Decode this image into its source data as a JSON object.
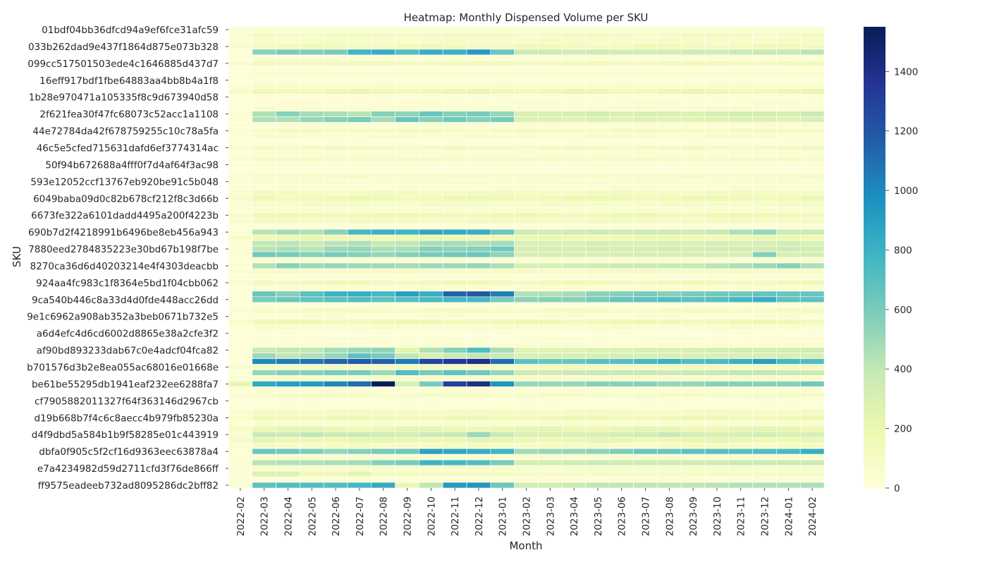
{
  "chart_data": {
    "type": "heatmap",
    "title": "Heatmap: Monthly Dispensed Volume per SKU",
    "xlabel": "Month",
    "ylabel": "SKU",
    "colormap": "YlGnBu",
    "colorbar": {
      "min": 0,
      "max": 1550,
      "ticks": [
        0,
        200,
        400,
        600,
        800,
        1000,
        1200,
        1400
      ]
    },
    "x_categories": [
      "2022-02",
      "2022-03",
      "2022-04",
      "2022-05",
      "2022-06",
      "2022-07",
      "2022-08",
      "2022-09",
      "2022-10",
      "2022-11",
      "2022-12",
      "2023-01",
      "2023-02",
      "2023-03",
      "2023-04",
      "2023-05",
      "2023-06",
      "2023-07",
      "2023-08",
      "2023-09",
      "2023-10",
      "2023-11",
      "2023-12",
      "2024-01",
      "2024-02"
    ],
    "row_count": 82,
    "y_tick_labels": [
      {
        "row": 0,
        "label": "01bdf04bb36dfcd94a9ef6fce31afc59"
      },
      {
        "row": 3,
        "label": "033b262dad9e437f1864d875e073b328"
      },
      {
        "row": 6,
        "label": "099cc517501503ede4c1646885d437d7"
      },
      {
        "row": 9,
        "label": "16eff917bdf1fbe64883aa4bb8b4a1f8"
      },
      {
        "row": 12,
        "label": "1b28e970471a105335f8c9d673940d58"
      },
      {
        "row": 15,
        "label": "2f621fea30f47fc68073c52acc1a1108"
      },
      {
        "row": 18,
        "label": "44e72784da42f678759255c10c78a5fa"
      },
      {
        "row": 21,
        "label": "46c5e5cfed715631dafd6ef3774314ac"
      },
      {
        "row": 24,
        "label": "50f94b672688a4fff0f7d4af64f3ac98"
      },
      {
        "row": 27,
        "label": "593e12052ccf13767eb920be91c5b048"
      },
      {
        "row": 30,
        "label": "6049baba09d0c82b678cf212f8c3d66b"
      },
      {
        "row": 33,
        "label": "6673fe322a6101dadd4495a200f4223b"
      },
      {
        "row": 36,
        "label": "690b7d2f4218991b6496be8eb456a943"
      },
      {
        "row": 39,
        "label": "7880eed2784835223e30bd67b198f7be"
      },
      {
        "row": 42,
        "label": "8270ca36d6d40203214e4f4303deacbb"
      },
      {
        "row": 45,
        "label": "924aa4fc983c1f8364e5bd1f04cbb062"
      },
      {
        "row": 48,
        "label": "9ca540b446c8a33d4d0fde448acc26dd"
      },
      {
        "row": 51,
        "label": "9e1c6962a908ab352a3beb0671b732e5"
      },
      {
        "row": 54,
        "label": "a6d4efc4d6cd6002d8865e38a2cfe3f2"
      },
      {
        "row": 57,
        "label": "af90bd893233dab67c0e4adcf04fca82"
      },
      {
        "row": 60,
        "label": "b701576d3b2e8ea055ac68016e01668e"
      },
      {
        "row": 63,
        "label": "be61be55295db1941eaf232ee6288fa7"
      },
      {
        "row": 66,
        "label": "cf7905882011327f64f363146d2967cb"
      },
      {
        "row": 69,
        "label": "d19b668b7f4c6c8aecc4b979fb85230a"
      },
      {
        "row": 72,
        "label": "d4f9dbd5a584b1b9f58285e01c443919"
      },
      {
        "row": 75,
        "label": "dbfa0f905c5f2cf16d9363eec63878a4"
      },
      {
        "row": 78,
        "label": "e7a4234982d59d2711cfd3f76de866ff"
      },
      {
        "row": 81,
        "label": "ff9575eadeeb732ad8095286dc2bff82"
      }
    ],
    "row_profiles": [
      {
        "rows": [
          0
        ],
        "base": 60
      },
      {
        "rows": [
          1
        ],
        "base": 110
      },
      {
        "rows": [
          2
        ],
        "base": 90
      },
      {
        "rows": [
          3
        ],
        "base": 140
      },
      {
        "rows": [
          4
        ],
        "values": [
          30,
          550,
          600,
          580,
          600,
          780,
          820,
          720,
          820,
          800,
          920,
          650,
          360,
          360,
          330,
          350,
          340,
          340,
          330,
          350,
          340,
          360,
          370,
          380,
          420
        ]
      },
      {
        "rows": [
          5
        ],
        "base": 30
      },
      {
        "rows": [
          6
        ],
        "base": 130
      },
      {
        "rows": [
          7
        ],
        "base": 20
      },
      {
        "rows": [
          8
        ],
        "base": 55
      },
      {
        "rows": [
          9
        ],
        "base": 25
      },
      {
        "rows": [
          10
        ],
        "base": 70
      },
      {
        "rows": [
          11
        ],
        "base": 180
      },
      {
        "rows": [
          12
        ],
        "base": 20
      },
      {
        "rows": [
          13
        ],
        "base": 40
      },
      {
        "rows": [
          14
        ],
        "base": 60
      },
      {
        "rows": [
          15
        ],
        "values": [
          40,
          450,
          560,
          480,
          460,
          420,
          560,
          530,
          650,
          560,
          600,
          520,
          310,
          300,
          320,
          340,
          300,
          300,
          300,
          290,
          320,
          320,
          320,
          320,
          360
        ]
      },
      {
        "rows": [
          16
        ],
        "values": [
          40,
          450,
          450,
          520,
          560,
          600,
          480,
          650,
          560,
          620,
          560,
          600,
          280,
          280,
          260,
          280,
          260,
          270,
          260,
          260,
          260,
          280,
          280,
          260,
          300
        ]
      },
      {
        "rows": [
          17
        ],
        "base": 45
      },
      {
        "rows": [
          18
        ],
        "base": 100
      },
      {
        "rows": [
          19
        ],
        "base": 60
      },
      {
        "rows": [
          20
        ],
        "base": 15
      },
      {
        "rows": [
          21
        ],
        "base": 110
      },
      {
        "rows": [
          22
        ],
        "base": 50
      },
      {
        "rows": [
          23
        ],
        "base": 90
      },
      {
        "rows": [
          24
        ],
        "base": 30
      },
      {
        "rows": [
          25
        ],
        "base": 20
      },
      {
        "rows": [
          26
        ],
        "base": 85
      },
      {
        "rows": [
          27
        ],
        "base": 60
      },
      {
        "rows": [
          28
        ],
        "base": 40
      },
      {
        "rows": [
          29
        ],
        "base": 120
      },
      {
        "rows": [
          30
        ],
        "base": 170
      },
      {
        "rows": [
          31
        ],
        "base": 95
      },
      {
        "rows": [
          32
        ],
        "base": 55
      },
      {
        "rows": [
          33
        ],
        "base": 160
      },
      {
        "rows": [
          34
        ],
        "base": 120
      },
      {
        "rows": [
          35
        ],
        "base": 25
      },
      {
        "rows": [
          36
        ],
        "values": [
          30,
          420,
          480,
          450,
          560,
          760,
          800,
          780,
          860,
          840,
          820,
          640,
          360,
          340,
          350,
          360,
          350,
          360,
          360,
          350,
          380,
          460,
          520,
          360,
          360
        ]
      },
      {
        "rows": [
          37
        ],
        "base": 180
      },
      {
        "rows": [
          38
        ],
        "values": [
          40,
          400,
          420,
          380,
          420,
          450,
          380,
          400,
          460,
          480,
          440,
          480,
          300,
          300,
          300,
          320,
          300,
          300,
          310,
          300,
          320,
          300,
          320,
          340,
          300
        ]
      },
      {
        "rows": [
          39
        ],
        "values": [
          40,
          420,
          460,
          420,
          500,
          520,
          460,
          470,
          560,
          540,
          560,
          620,
          320,
          320,
          320,
          330,
          320,
          320,
          330,
          320,
          330,
          330,
          330,
          360,
          340
        ]
      },
      {
        "rows": [
          40
        ],
        "values": [
          40,
          620,
          600,
          560,
          600,
          560,
          520,
          560,
          600,
          620,
          640,
          540,
          300,
          300,
          300,
          300,
          300,
          300,
          300,
          300,
          300,
          300,
          560,
          300,
          320
        ]
      },
      {
        "rows": [
          41
        ],
        "base": 60
      },
      {
        "rows": [
          42
        ],
        "values": [
          30,
          450,
          560,
          500,
          520,
          500,
          500,
          480,
          500,
          500,
          520,
          460,
          300,
          300,
          320,
          340,
          360,
          360,
          380,
          380,
          420,
          460,
          500,
          560,
          460
        ]
      },
      {
        "rows": [
          43
        ],
        "base": 90
      },
      {
        "rows": [
          44
        ],
        "base": 30
      },
      {
        "rows": [
          45
        ],
        "base": 140
      },
      {
        "rows": [
          46
        ],
        "base": 45
      },
      {
        "rows": [
          47
        ],
        "values": [
          20,
          650,
          560,
          700,
          800,
          820,
          760,
          900,
          820,
          1150,
          1200,
          1050,
          450,
          450,
          480,
          550,
          560,
          600,
          560,
          600,
          620,
          620,
          660,
          650,
          650
        ]
      },
      {
        "rows": [
          48
        ],
        "values": [
          30,
          600,
          640,
          660,
          680,
          720,
          680,
          700,
          740,
          760,
          760,
          600,
          540,
          560,
          560,
          600,
          660,
          680,
          720,
          680,
          700,
          760,
          820,
          680,
          680
        ]
      },
      {
        "rows": [
          49
        ],
        "base": 25
      },
      {
        "rows": [
          50
        ],
        "base": 100
      },
      {
        "rows": [
          51
        ],
        "base": 40
      },
      {
        "rows": [
          52
        ],
        "base": 160
      },
      {
        "rows": [
          53
        ],
        "base": 60
      },
      {
        "rows": [
          54
        ],
        "base": 15
      },
      {
        "rows": [
          55
        ],
        "base": 30
      },
      {
        "rows": [
          56
        ],
        "base": 50
      },
      {
        "rows": [
          57
        ],
        "values": [
          30,
          380,
          400,
          400,
          480,
          520,
          540,
          250,
          450,
          560,
          720,
          480,
          260,
          260,
          260,
          280,
          280,
          300,
          300,
          300,
          320,
          330,
          320,
          320,
          340
        ]
      },
      {
        "rows": [
          58
        ],
        "values": [
          30,
          500,
          400,
          450,
          520,
          680,
          600,
          400,
          300,
          380,
          400,
          380,
          300,
          300,
          300,
          300,
          300,
          300,
          300,
          300,
          300,
          300,
          300,
          300,
          300
        ]
      },
      {
        "rows": [
          59
        ],
        "values": [
          30,
          1000,
          1050,
          1080,
          1150,
          1180,
          1150,
          1050,
          1280,
          1350,
          1400,
          1100,
          680,
          650,
          650,
          700,
          700,
          750,
          800,
          720,
          740,
          800,
          900,
          760,
          720
        ]
      },
      {
        "rows": [
          60
        ],
        "base": 120
      },
      {
        "rows": [
          61
        ],
        "values": [
          30,
          520,
          560,
          560,
          600,
          600,
          500,
          720,
          600,
          680,
          620,
          520,
          360,
          340,
          360,
          380,
          380,
          380,
          360,
          380,
          380,
          400,
          400,
          380,
          360
        ]
      },
      {
        "rows": [
          62
        ],
        "base": 80
      },
      {
        "rows": [
          63
        ],
        "values": [
          220,
          850,
          900,
          920,
          1000,
          1100,
          1550,
          300,
          600,
          1300,
          1400,
          950,
          520,
          520,
          520,
          560,
          560,
          560,
          520,
          520,
          560,
          560,
          560,
          560,
          620
        ]
      },
      {
        "rows": [
          64
        ],
        "base": 40
      },
      {
        "rows": [
          65
        ],
        "base": 90
      },
      {
        "rows": [
          66
        ],
        "base": 30
      },
      {
        "rows": [
          67
        ],
        "base": 20
      },
      {
        "rows": [
          68
        ],
        "base": 110
      },
      {
        "rows": [
          69
        ],
        "base": 160
      },
      {
        "rows": [
          70
        ],
        "base": 60
      },
      {
        "rows": [
          71
        ],
        "base": 210
      },
      {
        "rows": [
          72
        ],
        "values": [
          50,
          380,
          360,
          400,
          360,
          360,
          340,
          320,
          360,
          380,
          500,
          380,
          280,
          280,
          300,
          300,
          320,
          340,
          380,
          320,
          300,
          300,
          340,
          300,
          300
        ]
      },
      {
        "rows": [
          73
        ],
        "base": 200
      },
      {
        "rows": [
          74
        ],
        "base": 100
      },
      {
        "rows": [
          75
        ],
        "values": [
          40,
          640,
          620,
          580,
          520,
          560,
          600,
          620,
          880,
          860,
          820,
          780,
          480,
          520,
          520,
          540,
          580,
          640,
          640,
          680,
          700,
          700,
          720,
          740,
          820
        ]
      },
      {
        "rows": [
          76
        ],
        "base": 60
      },
      {
        "rows": [
          77
        ],
        "values": [
          40,
          420,
          440,
          440,
          460,
          480,
          560,
          600,
          780,
          760,
          720,
          600,
          320,
          320,
          340,
          360,
          340,
          340,
          340,
          340,
          340,
          360,
          360,
          360,
          360
        ]
      },
      {
        "rows": [
          78
        ],
        "base": 80
      },
      {
        "rows": [
          79
        ],
        "values": [
          40,
          280,
          280,
          160,
          160,
          240,
          120,
          120,
          120,
          120,
          120,
          120,
          90,
          90,
          90,
          90,
          90,
          90,
          90,
          90,
          90,
          90,
          90,
          90,
          90
        ]
      },
      {
        "rows": [
          80
        ],
        "base": 30
      },
      {
        "rows": [
          81
        ],
        "values": [
          40,
          680,
          720,
          720,
          720,
          760,
          840,
          200,
          400,
          920,
          940,
          640,
          340,
          340,
          360,
          400,
          400,
          400,
          400,
          400,
          420,
          440,
          440,
          440,
          460
        ]
      }
    ]
  }
}
